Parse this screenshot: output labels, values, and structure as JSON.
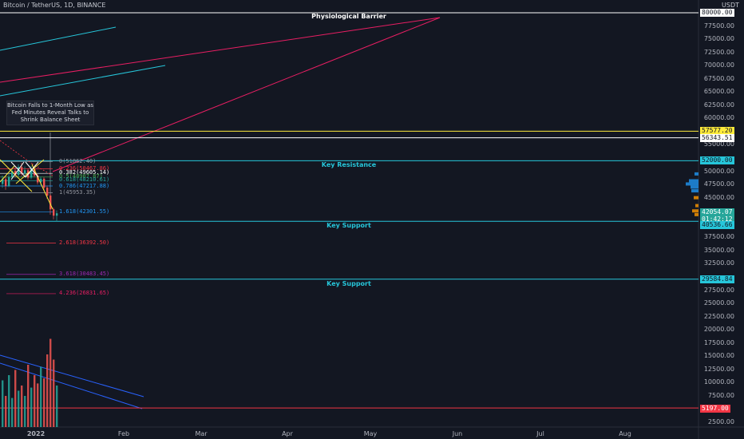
{
  "header": {
    "ticker": "Bitcoin / TetherUS, 1D, BINANCE",
    "currency": "USDT"
  },
  "chart_data": {
    "type": "bar",
    "y_axis_ticks": [
      "77500.00",
      "75000.00",
      "72500.00",
      "70000.00",
      "67500.00",
      "65000.00",
      "62500.00",
      "60000.00",
      "55000.00",
      "50000.00",
      "47500.00",
      "45000.00",
      "37500.00",
      "35000.00",
      "32500.00",
      "27500.00",
      "25000.00",
      "22500.00",
      "20000.00",
      "17500.00",
      "15000.00",
      "12500.00",
      "10000.00",
      "7500.00",
      "2500.00"
    ],
    "x_axis_ticks": [
      "2022",
      "Feb",
      "Mar",
      "Apr",
      "May",
      "Jun",
      "Jul",
      "Aug"
    ],
    "price_tags": [
      {
        "text": "80000.00",
        "bg": "#ffffff",
        "fg": "#131722"
      },
      {
        "text": "57577.20",
        "bg": "#ffeb3b",
        "fg": "#131722"
      },
      {
        "text": "56343.51",
        "bg": "#ffffff",
        "fg": "#131722"
      },
      {
        "text": "52000.00",
        "bg": "#26c6da",
        "fg": "#131722"
      },
      {
        "text": "42054.07",
        "bg": "#26a69a",
        "fg": "#ffffff"
      },
      {
        "text": "01:42:12",
        "bg": "#26a69a",
        "fg": "#ffffff"
      },
      {
        "text": "40536.66",
        "bg": "#26c6da",
        "fg": "#131722"
      },
      {
        "text": "29584.84",
        "bg": "#26c6da",
        "fg": "#131722"
      },
      {
        "text": "5197.00",
        "bg": "#f23645",
        "fg": "#ffffff"
      }
    ],
    "horizontal_levels": [
      {
        "value": 80000.0,
        "color": "#ffffff"
      },
      {
        "value": 57577.2,
        "color": "#ffeb3b"
      },
      {
        "value": 56343.51,
        "color": "#ffffff"
      },
      {
        "value": 52000.0,
        "color": "#26c6da"
      },
      {
        "value": 40536.66,
        "color": "#26c6da"
      },
      {
        "value": 29584.84,
        "color": "#26c6da"
      },
      {
        "value": 5197.0,
        "color": "#f23645"
      }
    ],
    "annotations": {
      "physiological_barrier": "Physiological Barrier",
      "key_resistance": "Key Resistance",
      "key_support_1": "Key Support",
      "key_support_2": "Key Support",
      "news_note": "Bitcoin Falls to 1-Month Low as Fed Minutes Reveal Talks to Shrink Balance Sheet"
    },
    "fib_levels": [
      {
        "text": "0(51862.40)",
        "value": 51862.4,
        "color": "#9598a1"
      },
      {
        "text": "0.236(50467.86)",
        "value": 50467.86,
        "color": "#f23645"
      },
      {
        "text": "0.382(49605.14)",
        "value": 49605.14,
        "color": "#ffffff"
      },
      {
        "text": "0.5(48907.87)",
        "value": 48907.87,
        "color": "#4caf50"
      },
      {
        "text": "0.618(48210.61)",
        "value": 48210.61,
        "color": "#26a69a"
      },
      {
        "text": "0.786(47217.88)",
        "value": 47217.88,
        "color": "#2196f3"
      },
      {
        "text": "1(45953.35)",
        "value": 45953.35,
        "color": "#9598a1"
      },
      {
        "text": "1.618(42301.55)",
        "value": 42301.55,
        "color": "#2196f3"
      },
      {
        "text": "2.618(36392.50)",
        "value": 36392.5,
        "color": "#f23645"
      },
      {
        "text": "3.618(30483.45)",
        "value": 30483.45,
        "color": "#9c27b0"
      },
      {
        "text": "4.236(26831.65)",
        "value": 26831.65,
        "color": "#e91e63"
      }
    ],
    "ylim": [
      0,
      82000
    ]
  }
}
